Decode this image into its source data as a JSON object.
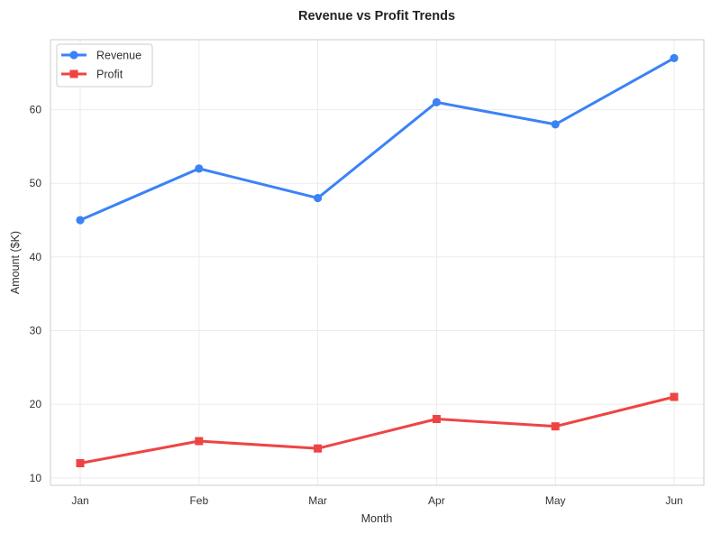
{
  "chart_data": {
    "type": "line",
    "title": "Revenue vs Profit Trends",
    "xlabel": "Month",
    "ylabel": "Amount ($K)",
    "categories": [
      "Jan",
      "Feb",
      "Mar",
      "Apr",
      "May",
      "Jun"
    ],
    "yticks": [
      10,
      20,
      30,
      40,
      50,
      60
    ],
    "ylim": [
      9,
      69.5
    ],
    "grid": true,
    "legend_position": "top-left",
    "series": [
      {
        "name": "Revenue",
        "values": [
          45,
          52,
          48,
          61,
          58,
          67
        ],
        "color": "#3b82f6",
        "marker": "circle"
      },
      {
        "name": "Profit",
        "values": [
          12,
          15,
          14,
          18,
          17,
          21
        ],
        "color": "#ef4444",
        "marker": "square"
      }
    ]
  }
}
